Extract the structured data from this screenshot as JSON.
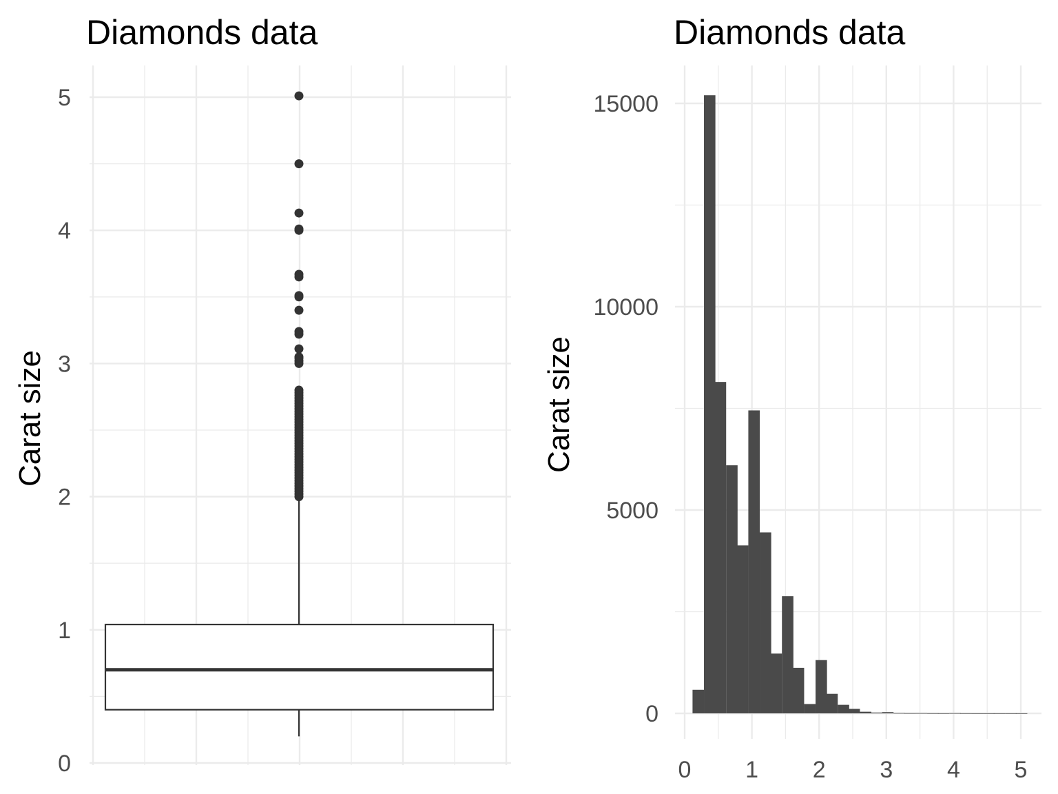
{
  "chart_data": [
    {
      "type": "box",
      "title": "Diamonds data",
      "ylabel": "Carat size",
      "xlabel": "",
      "ylim": [
        0,
        5
      ],
      "y_ticks": [
        0,
        1,
        2,
        3,
        4,
        5
      ],
      "box": {
        "min": 0.2,
        "q1": 0.4,
        "median": 0.7,
        "q3": 1.04,
        "whisker_high": 2.0
      },
      "outliers": [
        2.0,
        2.02,
        2.04,
        2.06,
        2.08,
        2.1,
        2.12,
        2.14,
        2.16,
        2.18,
        2.2,
        2.22,
        2.24,
        2.26,
        2.28,
        2.3,
        2.32,
        2.34,
        2.36,
        2.38,
        2.4,
        2.42,
        2.44,
        2.46,
        2.48,
        2.5,
        2.52,
        2.54,
        2.56,
        2.58,
        2.6,
        2.62,
        2.64,
        2.66,
        2.68,
        2.7,
        2.72,
        2.74,
        2.76,
        2.78,
        2.8,
        3.0,
        3.02,
        3.04,
        3.05,
        3.11,
        3.22,
        3.24,
        3.4,
        3.5,
        3.51,
        3.65,
        3.67,
        4.0,
        4.01,
        4.13,
        4.5,
        5.01
      ],
      "grid": true
    },
    {
      "type": "bar",
      "title": "Diamonds data",
      "ylabel": "Carat size",
      "xlabel": "",
      "xlim": [
        -0.05,
        5.25
      ],
      "ylim": [
        -500,
        16000
      ],
      "x_ticks": [
        0,
        1,
        2,
        3,
        4,
        5
      ],
      "y_ticks": [
        0,
        5000,
        10000,
        15000
      ],
      "bin_width": 0.166,
      "bins": [
        {
          "x": 0.2,
          "count": 580
        },
        {
          "x": 0.37,
          "count": 15200
        },
        {
          "x": 0.53,
          "count": 8150
        },
        {
          "x": 0.7,
          "count": 6100
        },
        {
          "x": 0.86,
          "count": 4130
        },
        {
          "x": 1.03,
          "count": 7450
        },
        {
          "x": 1.2,
          "count": 4450
        },
        {
          "x": 1.36,
          "count": 1470
        },
        {
          "x": 1.53,
          "count": 2880
        },
        {
          "x": 1.69,
          "count": 1120
        },
        {
          "x": 1.86,
          "count": 230
        },
        {
          "x": 2.03,
          "count": 1310
        },
        {
          "x": 2.19,
          "count": 480
        },
        {
          "x": 2.36,
          "count": 210
        },
        {
          "x": 2.52,
          "count": 110
        },
        {
          "x": 2.69,
          "count": 40
        },
        {
          "x": 2.86,
          "count": 20
        },
        {
          "x": 3.02,
          "count": 30
        },
        {
          "x": 3.19,
          "count": 8
        },
        {
          "x": 3.35,
          "count": 5
        },
        {
          "x": 3.52,
          "count": 6
        },
        {
          "x": 3.69,
          "count": 3
        },
        {
          "x": 3.85,
          "count": 2
        },
        {
          "x": 4.02,
          "count": 5
        },
        {
          "x": 4.18,
          "count": 2
        },
        {
          "x": 4.35,
          "count": 1
        },
        {
          "x": 4.52,
          "count": 1
        },
        {
          "x": 4.68,
          "count": 1
        },
        {
          "x": 4.85,
          "count": 1
        },
        {
          "x": 5.01,
          "count": 1
        }
      ],
      "bar_color": "#4a4a4a",
      "grid": true
    }
  ]
}
